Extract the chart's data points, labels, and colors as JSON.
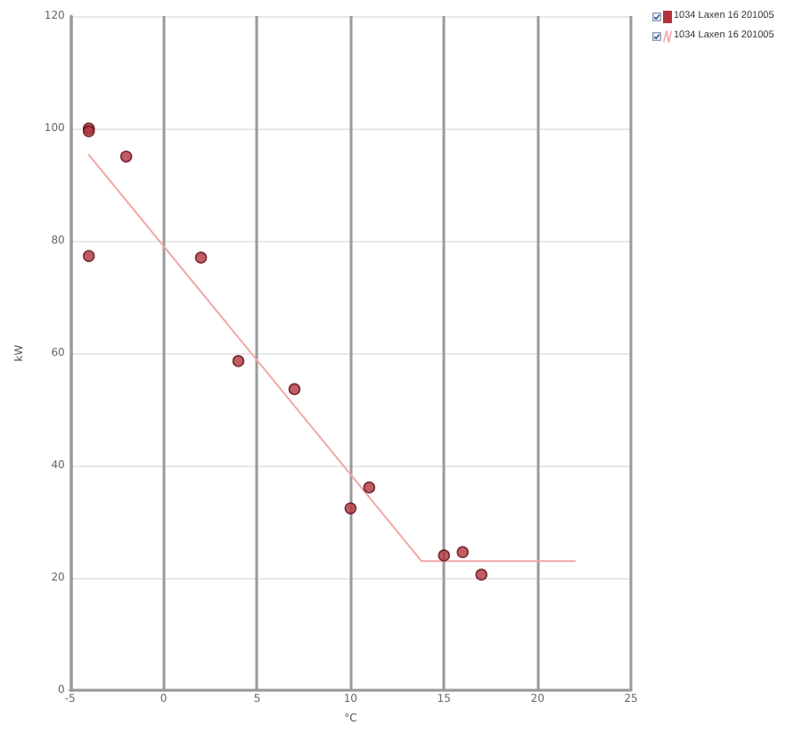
{
  "chart_data": {
    "type": "scatter",
    "xlabel": "°C",
    "ylabel": "kW",
    "xlim": [
      -5,
      25
    ],
    "xticks": [
      -5,
      0,
      5,
      10,
      15,
      20,
      25
    ],
    "ylim": [
      0,
      120
    ],
    "yticks": [
      0,
      20,
      40,
      60,
      80,
      100,
      120
    ],
    "grid": true,
    "legend": "top right",
    "marker": "circle",
    "series": [
      {
        "name": "1034 Laxen 16 201005",
        "color": "#b3333d",
        "x": [
          -4,
          -4,
          -2,
          -4,
          2,
          4,
          7,
          10,
          11,
          15,
          16,
          17
        ],
        "values": [
          100,
          99.5,
          95,
          77.3,
          77,
          58.6,
          53.6,
          32.4,
          36.1,
          24,
          24.6,
          20.6
        ]
      },
      {
        "type": "line",
        "name": "1034 Laxen 16 201005",
        "color": "#f2a7a7",
        "marker": "none",
        "x": [
          -4,
          13.8,
          22
        ],
        "values": [
          95.3,
          23,
          23
        ]
      }
    ]
  }
}
